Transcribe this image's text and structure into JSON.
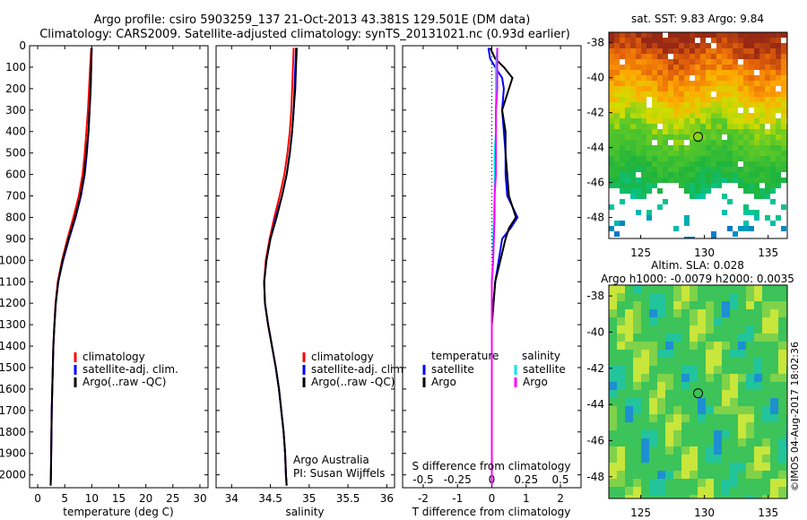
{
  "title_line1": "Argo profile: csiro 5903259_137 21-Oct-2013 43.381S 129.501E (DM data)",
  "title_line2": "Climatology: CARS2009. Satellite-adjusted climatology: synTS_20131021.nc (0.93d earlier)",
  "watermark": "©IMOS 04-Aug-2017 18:02:36",
  "colors": {
    "climatology": "#ff0000",
    "satellite": "#0000ff",
    "argo": "#000000",
    "satellite_salinity": "#00e5ee",
    "argo_salinity": "#ff00ff"
  },
  "depth_ticks": [
    "0",
    "100",
    "200",
    "300",
    "400",
    "500",
    "600",
    "700",
    "800",
    "900",
    "1000",
    "1100",
    "1200",
    "1300",
    "1400",
    "1500",
    "1600",
    "1700",
    "1800",
    "1900",
    "2000"
  ],
  "chart_data": [
    {
      "type": "line",
      "id": "temperature",
      "xlabel": "temperature (deg C)",
      "ylabel": "depth",
      "xlim": [
        -1.5,
        31.5
      ],
      "ylim": [
        2060,
        0
      ],
      "x_ticks": [
        "0",
        "5",
        "10",
        "15",
        "20",
        "25",
        "30"
      ],
      "x_tick_values": [
        0,
        5,
        10,
        15,
        20,
        25,
        30
      ],
      "legend": [
        "climatology",
        "satellite-adj. clim.",
        "Argo(..raw -QC)"
      ],
      "series": [
        {
          "name": "climatology",
          "color": "#ff0000",
          "depth": [
            10,
            100,
            200,
            300,
            400,
            500,
            600,
            700,
            800,
            900,
            1000,
            1100,
            1200,
            1300,
            1400,
            1500,
            1600,
            1700,
            1800,
            1900,
            2000,
            2050
          ],
          "values": [
            9.9,
            9.7,
            9.5,
            9.3,
            9.0,
            8.7,
            8.3,
            7.6,
            6.6,
            5.5,
            4.5,
            3.7,
            3.3,
            3.1,
            2.9,
            2.8,
            2.7,
            2.6,
            2.55,
            2.5,
            2.45,
            2.4
          ]
        },
        {
          "name": "satellite-adj. clim.",
          "color": "#0000ff",
          "depth": [
            10,
            100,
            200,
            300,
            400,
            500,
            600,
            700,
            800,
            900,
            1000,
            1100,
            1200,
            1300,
            1400,
            1500,
            1600,
            1700,
            1800,
            1900,
            2000,
            2050
          ],
          "values": [
            10.0,
            9.9,
            9.8,
            9.6,
            9.4,
            9.1,
            8.7,
            8.0,
            7.0,
            5.8,
            4.7,
            3.8,
            3.35,
            3.1,
            2.9,
            2.8,
            2.7,
            2.6,
            2.55,
            2.5,
            2.45,
            2.4
          ]
        },
        {
          "name": "Argo(..raw -QC)",
          "color": "#000000",
          "depth": [
            10,
            100,
            200,
            300,
            400,
            500,
            600,
            700,
            800,
            900,
            1000,
            1100,
            1200,
            1300,
            1400,
            1500,
            1600,
            1700,
            1800,
            1900,
            2000,
            2050
          ],
          "values": [
            10.0,
            9.9,
            9.8,
            9.6,
            9.4,
            9.0,
            8.6,
            7.9,
            6.9,
            5.7,
            4.6,
            3.8,
            3.35,
            3.1,
            2.9,
            2.8,
            2.7,
            2.6,
            2.55,
            2.5,
            2.45,
            2.4
          ]
        }
      ]
    },
    {
      "type": "line",
      "id": "salinity",
      "xlabel": "salinity",
      "xlim": [
        33.8,
        36.1
      ],
      "ylim": [
        2060,
        0
      ],
      "x_ticks": [
        "34",
        "34.5",
        "35",
        "35.5",
        "36"
      ],
      "x_tick_values": [
        34,
        34.5,
        35,
        35.5,
        36
      ],
      "legend": [
        "climatology",
        "satellite-adj. clim.",
        "Argo(..raw -QC)"
      ],
      "annotation": [
        "Argo Australia",
        "PI: Susan Wijffels"
      ],
      "series": [
        {
          "name": "climatology",
          "color": "#ff0000",
          "depth": [
            10,
            100,
            200,
            300,
            400,
            500,
            600,
            700,
            800,
            900,
            1000,
            1100,
            1200,
            1300,
            1400,
            1500,
            1600,
            1700,
            1800,
            1900,
            2000,
            2050
          ],
          "values": [
            34.8,
            34.79,
            34.78,
            34.77,
            34.75,
            34.72,
            34.68,
            34.62,
            34.55,
            34.49,
            34.44,
            34.42,
            34.43,
            34.47,
            34.52,
            34.57,
            34.61,
            34.64,
            34.67,
            34.69,
            34.7,
            34.71
          ]
        },
        {
          "name": "satellite-adj. clim.",
          "color": "#0000ff",
          "depth": [
            10,
            100,
            200,
            300,
            400,
            500,
            600,
            700,
            800,
            900,
            1000,
            1100,
            1200,
            1300,
            1400,
            1500,
            1600,
            1700,
            1800,
            1900,
            2000,
            2050
          ],
          "values": [
            34.83,
            34.82,
            34.81,
            34.8,
            34.78,
            34.75,
            34.71,
            34.65,
            34.57,
            34.5,
            34.45,
            34.42,
            34.43,
            34.47,
            34.52,
            34.57,
            34.61,
            34.64,
            34.67,
            34.69,
            34.7,
            34.71
          ]
        },
        {
          "name": "Argo(..raw -QC)",
          "color": "#000000",
          "depth": [
            10,
            100,
            200,
            300,
            400,
            500,
            600,
            700,
            800,
            900,
            1000,
            1100,
            1200,
            1300,
            1400,
            1500,
            1600,
            1700,
            1800,
            1900,
            2000,
            2050
          ],
          "values": [
            34.84,
            34.83,
            34.82,
            34.8,
            34.78,
            34.75,
            34.71,
            34.65,
            34.58,
            34.5,
            34.45,
            34.42,
            34.43,
            34.47,
            34.52,
            34.57,
            34.61,
            34.64,
            34.67,
            34.69,
            34.7,
            34.71
          ]
        }
      ]
    },
    {
      "type": "line",
      "id": "difference",
      "xlabel": "T difference from climatology",
      "xlabel_top": "S difference from climatology",
      "xlim": [
        -2.6,
        2.6
      ],
      "xlim_top": [
        -0.65,
        0.65
      ],
      "ylim": [
        2060,
        0
      ],
      "x_ticks": [
        "-2",
        "-1",
        "0",
        "1",
        "2"
      ],
      "x_tick_values": [
        -2,
        -1,
        0,
        1,
        2
      ],
      "x_ticks_top": [
        "-0.5",
        "-0.25",
        "0",
        "0.25",
        "0.5"
      ],
      "x_tick_values_top": [
        -0.5,
        -0.25,
        0,
        0.25,
        0.5
      ],
      "legend_temperature": {
        "title": "temperature",
        "items": [
          "satellite",
          "Argo"
        ]
      },
      "legend_salinity": {
        "title": "salinity",
        "items": [
          "satellite",
          "Argo"
        ]
      },
      "series": [
        {
          "name": "temperature satellite",
          "color": "#0000ff",
          "depth": [
            10,
            60,
            100,
            150,
            200,
            300,
            400,
            500,
            600,
            700,
            750,
            800,
            850,
            900,
            1000,
            1100,
            1200,
            1300,
            1400,
            1500,
            1600,
            1800,
            2000,
            2050
          ],
          "values": [
            -0.1,
            -0.05,
            0.1,
            0.3,
            0.35,
            0.3,
            0.35,
            0.4,
            0.4,
            0.45,
            0.6,
            0.75,
            0.55,
            0.3,
            0.2,
            0.1,
            0.05,
            0.0,
            0.0,
            0.0,
            0.0,
            0.0,
            0.0,
            0.0
          ]
        },
        {
          "name": "temperature Argo",
          "color": "#000000",
          "depth": [
            10,
            60,
            100,
            150,
            200,
            300,
            400,
            500,
            600,
            700,
            750,
            800,
            850,
            900,
            1000,
            1100,
            1200,
            1300,
            1400,
            1500,
            1600,
            1800,
            2000,
            2050
          ],
          "values": [
            -0.05,
            0.1,
            0.35,
            0.6,
            0.5,
            0.3,
            0.4,
            0.4,
            0.45,
            0.5,
            0.6,
            0.7,
            0.5,
            0.4,
            0.25,
            0.1,
            0.05,
            0.0,
            0.0,
            0.0,
            0.0,
            0.0,
            0.0,
            0.0
          ]
        },
        {
          "name": "salinity satellite",
          "color": "#00e5ee",
          "depth": [
            10,
            100,
            200,
            300,
            400,
            500,
            600,
            700,
            800,
            900,
            1000,
            1100,
            1200,
            1300,
            1400,
            1500,
            1600,
            1800,
            2000,
            2050
          ],
          "values": [
            0.04,
            0.03,
            0.03,
            0.03,
            0.03,
            0.02,
            0.02,
            0.02,
            0.015,
            0.01,
            0.01,
            0.0,
            0.0,
            0.0,
            0.0,
            0.0,
            0.0,
            0.0,
            0.0,
            0.0
          ]
        },
        {
          "name": "salinity Argo",
          "color": "#ff00ff",
          "depth": [
            10,
            100,
            200,
            300,
            400,
            500,
            600,
            700,
            800,
            900,
            1000,
            1100,
            1200,
            1300,
            1400,
            1500,
            1600,
            1800,
            2000,
            2050
          ],
          "values": [
            0.04,
            0.04,
            0.04,
            0.03,
            0.03,
            0.03,
            0.03,
            0.02,
            0.02,
            0.015,
            0.01,
            0.0,
            0.0,
            0.0,
            0.0,
            0.0,
            0.0,
            0.0,
            0.0,
            0.0
          ]
        }
      ]
    },
    {
      "type": "heatmap",
      "id": "sst_map",
      "title": "sat. SST: 9.83 Argo: 9.84",
      "x_ticks": [
        "125",
        "130",
        "135"
      ],
      "x_tick_values": [
        125,
        130,
        135
      ],
      "y_ticks": [
        "-38",
        "-40",
        "-42",
        "-44",
        "-46",
        "-48"
      ],
      "y_tick_values": [
        -38,
        -40,
        -42,
        -44,
        -46,
        -48
      ],
      "xlim": [
        122.5,
        136.5
      ],
      "ylim": [
        -49.2,
        -37.4
      ],
      "marker": {
        "lon": 129.501,
        "lat": -43.381
      }
    },
    {
      "type": "heatmap",
      "id": "sla_map",
      "title_line1": "Altim. SLA: 0.028",
      "title_line2": "Argo h1000: -0.0079 h2000: 0.0035",
      "x_ticks": [
        "125",
        "130",
        "135"
      ],
      "x_tick_values": [
        125,
        130,
        135
      ],
      "y_ticks": [
        "-38",
        "-40",
        "-42",
        "-44",
        "-46",
        "-48"
      ],
      "y_tick_values": [
        -38,
        -40,
        -42,
        -44,
        -46,
        -48
      ],
      "xlim": [
        122.5,
        136.5
      ],
      "ylim": [
        -49.2,
        -37.4
      ],
      "marker": {
        "lon": 129.501,
        "lat": -43.381
      }
    }
  ]
}
